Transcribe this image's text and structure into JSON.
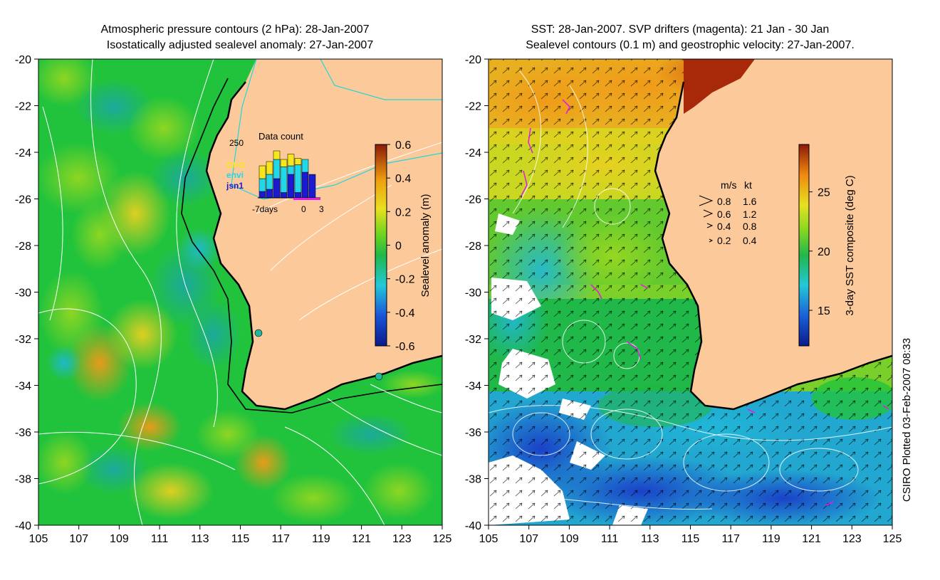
{
  "left_panel": {
    "title_line1": "Atmospheric pressure contours (2 hPa): 28-Jan-2007",
    "title_line2": "Isostatically adjusted sealevel anomaly: 27-Jan-2007",
    "x_ticks": [
      "105",
      "107",
      "109",
      "111",
      "113",
      "115",
      "117",
      "119",
      "121",
      "123",
      "125"
    ],
    "y_ticks": [
      "-20",
      "-22",
      "-24",
      "-26",
      "-28",
      "-30",
      "-32",
      "-34",
      "-36",
      "-38",
      "-40"
    ],
    "colorbar_label": "Sealevel anomaly (m)",
    "colorbar_ticks": [
      "0.6",
      "0.4",
      "0.2",
      "0",
      "-0.2",
      "-0.4",
      "-0.6"
    ],
    "colorbar_range": [
      -0.6,
      0.6
    ],
    "inset": {
      "title": "Data count",
      "y_max_label": "250",
      "x_labels": [
        "-7days",
        "0",
        "3"
      ],
      "legend": [
        {
          "name": "GFO",
          "color": "#f5e61e"
        },
        {
          "name": "envi",
          "color": "#22d8e8"
        },
        {
          "name": "jsn1",
          "color": "#1a1ad0"
        }
      ],
      "bars": [
        {
          "jsn1": 30,
          "envi": 60,
          "gfo": 60
        },
        {
          "jsn1": 40,
          "envi": 70,
          "gfo": 60
        },
        {
          "jsn1": 90,
          "envi": 90,
          "gfo": 40
        },
        {
          "jsn1": 25,
          "envi": 120,
          "gfo": 35
        },
        {
          "jsn1": 110,
          "envi": 40,
          "gfo": 55
        },
        {
          "jsn1": 25,
          "envi": 130,
          "gfo": 30
        },
        {
          "jsn1": 120,
          "envi": 60,
          "gfo": 0
        },
        {
          "jsn1": 110,
          "envi": 0,
          "gfo": 0
        }
      ]
    }
  },
  "right_panel": {
    "title_line1": "SST: 28-Jan-2007. SVP drifters (magenta): 21 Jan - 30 Jan",
    "title_line2": "Sealevel contours (0.1 m) and geostrophic velocity: 27-Jan-2007.",
    "x_ticks": [
      "105",
      "107",
      "109",
      "111",
      "113",
      "115",
      "117",
      "119",
      "121",
      "123",
      "125"
    ],
    "y_ticks": [
      "-20",
      "-22",
      "-24",
      "-26",
      "-28",
      "-30",
      "-32",
      "-34",
      "-36",
      "-38",
      "-40"
    ],
    "colorbar_label": "3-day SST composite (deg C)",
    "colorbar_ticks": [
      "25",
      "20",
      "15"
    ],
    "colorbar_range": [
      12,
      29
    ],
    "velocity_legend": {
      "header_ms": "m/s",
      "header_kt": "kt",
      "rows": [
        {
          "ms": "0.8",
          "kt": "1.6"
        },
        {
          "ms": "0.6",
          "kt": "1.2"
        },
        {
          "ms": "0.4",
          "kt": "0.8"
        },
        {
          "ms": "0.2",
          "kt": "0.4"
        }
      ]
    }
  },
  "footer_credit": "CSIRO Plotted 03-Feb-2007 08:33",
  "colors": {
    "land": "#fcc99a",
    "ocean_green": "#22c33c",
    "drifter_magenta": "#e020e0",
    "pressure_contour": "#ffffff",
    "coast_contour": "#20d8d8"
  }
}
